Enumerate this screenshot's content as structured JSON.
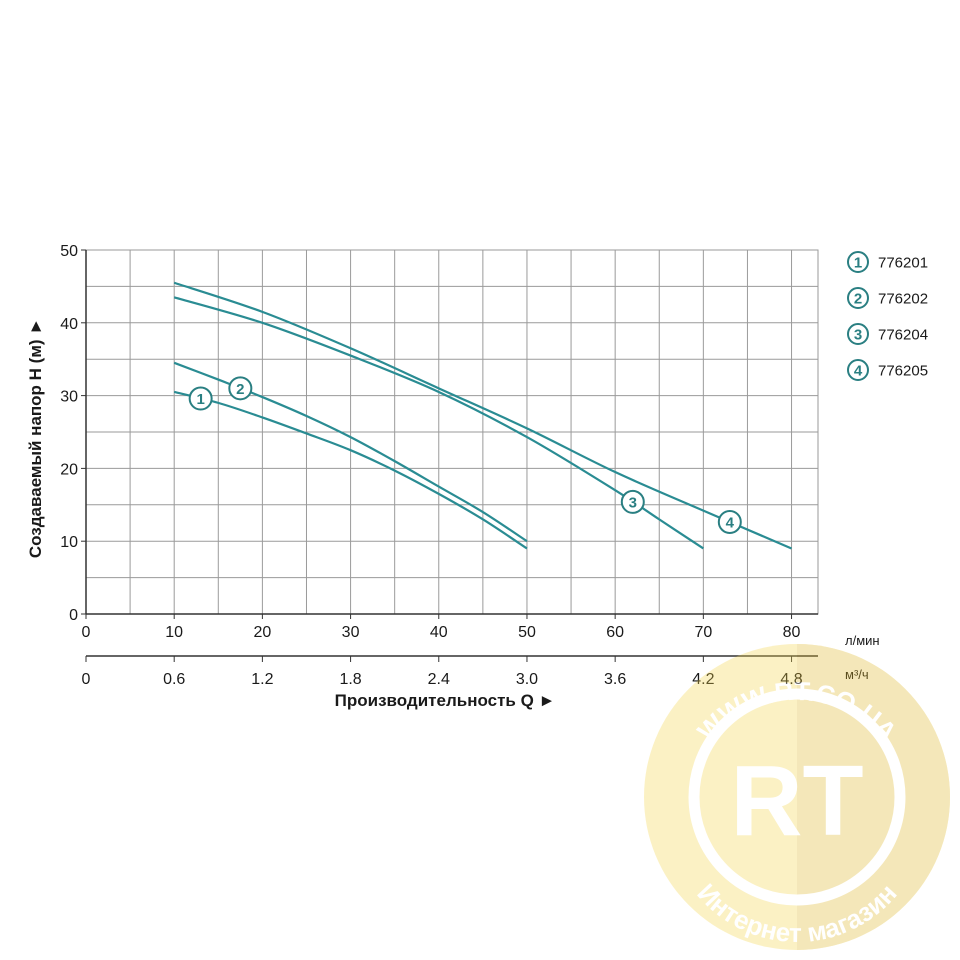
{
  "colors": {
    "curve": "#2a8c93",
    "marker": "#2a7f82",
    "grid": "#9a9a9a",
    "axis": "#333333"
  },
  "chart_data": {
    "type": "line",
    "title": "",
    "ylabel": "Создаваемый напор H (м) ►",
    "xlabel": "Производительность Q ►",
    "x_unit": "л/мин",
    "x2_unit": "м³/ч",
    "xlim": [
      0,
      83
    ],
    "ylim": [
      0,
      50
    ],
    "x_ticks": [
      "0",
      "10",
      "20",
      "30",
      "40",
      "50",
      "60",
      "70",
      "80"
    ],
    "x2_ticks": [
      "0",
      "0.6",
      "1.2",
      "1.8",
      "2.4",
      "3.0",
      "3.6",
      "4.2",
      "4.8"
    ],
    "y_ticks": [
      "0",
      "10",
      "20",
      "30",
      "40",
      "50"
    ],
    "grid": true,
    "legend_position": "right",
    "series": [
      {
        "name": "776201",
        "marker": "1",
        "label_at": 13,
        "x": [
          10,
          15,
          20,
          25,
          30,
          35,
          40,
          45,
          50
        ],
        "y": [
          30.5,
          29.0,
          27.0,
          24.8,
          22.5,
          19.7,
          16.5,
          13.0,
          9.0
        ]
      },
      {
        "name": "776202",
        "marker": "2",
        "label_at": 17.5,
        "x": [
          10,
          15,
          20,
          25,
          30,
          35,
          40,
          45,
          50
        ],
        "y": [
          34.5,
          32.2,
          29.8,
          27.2,
          24.3,
          21.0,
          17.5,
          14.0,
          10.0
        ]
      },
      {
        "name": "776204",
        "marker": "3",
        "label_at": 62,
        "x": [
          10,
          20,
          30,
          40,
          50,
          60,
          65,
          70
        ],
        "y": [
          43.5,
          40.0,
          35.5,
          30.5,
          24.3,
          17.0,
          13.0,
          9.0
        ]
      },
      {
        "name": "776205",
        "marker": "4",
        "label_at": 73,
        "x": [
          10,
          20,
          30,
          40,
          50,
          60,
          70,
          80
        ],
        "y": [
          45.5,
          41.5,
          36.5,
          31.0,
          25.5,
          19.5,
          14.2,
          9.0
        ]
      }
    ]
  },
  "legend": {
    "items": [
      {
        "marker": "1",
        "label": "776201"
      },
      {
        "marker": "2",
        "label": "776202"
      },
      {
        "marker": "3",
        "label": "776204"
      },
      {
        "marker": "4",
        "label": "776205"
      }
    ]
  },
  "watermark": {
    "url": "WWW.RT.CO.UA",
    "logo": "RT",
    "caption": "Интернет магазин"
  }
}
